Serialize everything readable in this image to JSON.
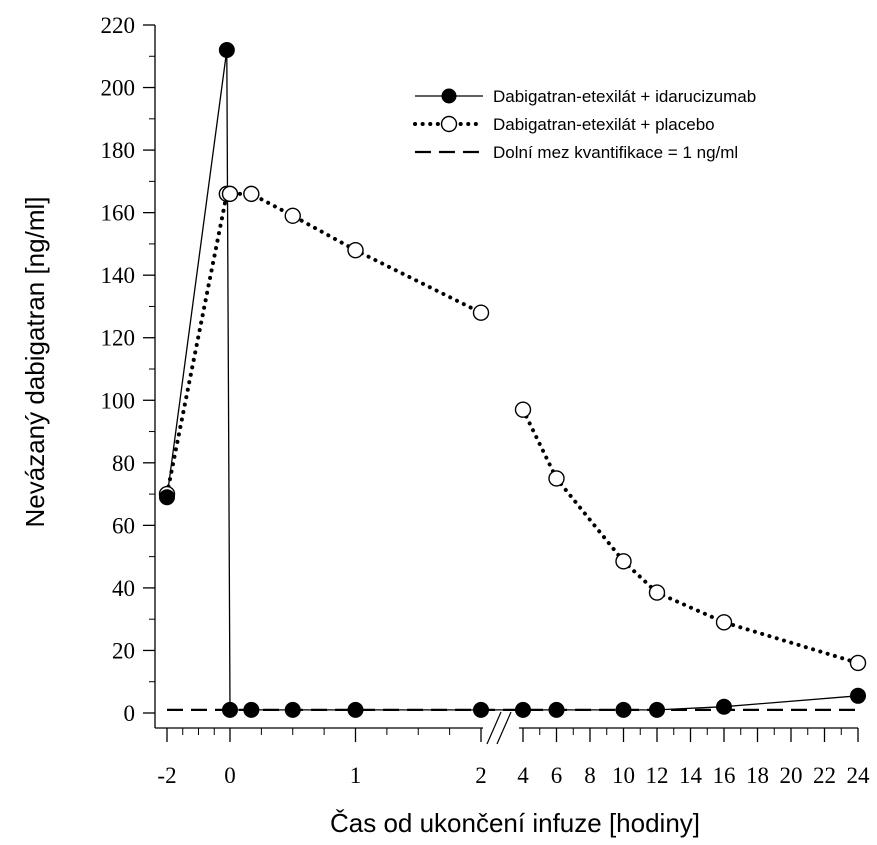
{
  "chart_data": {
    "type": "line",
    "xlabel": "Čas od ukončení infuze [hodiny]",
    "ylabel": "Nevázaný dabigatran [ng/ml]",
    "ylim": [
      0,
      220
    ],
    "y_ticks": [
      0,
      20,
      40,
      60,
      80,
      100,
      120,
      140,
      160,
      180,
      200,
      220
    ],
    "x_axis_note": "broken axis: segment -2 to 2 h, then 4 to 24 h",
    "x_tick_labels": [
      "-2",
      "0",
      "1",
      "2",
      "4",
      "6",
      "8",
      "10",
      "12",
      "14",
      "16",
      "18",
      "20",
      "22",
      "24"
    ],
    "legend_position": "top-right",
    "series": [
      {
        "name": "Dabigatran-etexilát + idarucizumab",
        "style": "solid-line-filled-circle",
        "color": "#000000",
        "points": [
          {
            "x": -2,
            "y": 69
          },
          {
            "x": -0.1,
            "y": 212
          },
          {
            "x": 0,
            "y": 1
          },
          {
            "x": 0.17,
            "y": 1
          },
          {
            "x": 0.5,
            "y": 1
          },
          {
            "x": 1,
            "y": 1
          },
          {
            "x": 2,
            "y": 1
          },
          {
            "x": 4,
            "y": 1
          },
          {
            "x": 6,
            "y": 1
          },
          {
            "x": 10,
            "y": 1
          },
          {
            "x": 12,
            "y": 1
          },
          {
            "x": 16,
            "y": 2
          },
          {
            "x": 24,
            "y": 5.5
          }
        ]
      },
      {
        "name": "Dabigatran-etexilát + placebo",
        "style": "dotted-line-open-circle",
        "color": "#000000",
        "points": [
          {
            "x": -2,
            "y": 70
          },
          {
            "x": -0.1,
            "y": 166
          },
          {
            "x": 0,
            "y": 166
          },
          {
            "x": 0.17,
            "y": 166
          },
          {
            "x": 0.5,
            "y": 159
          },
          {
            "x": 1,
            "y": 148
          },
          {
            "x": 2,
            "y": 128
          },
          {
            "x": 4,
            "y": 97
          },
          {
            "x": 6,
            "y": 75
          },
          {
            "x": 10,
            "y": 48.5
          },
          {
            "x": 12,
            "y": 38.5
          },
          {
            "x": 16,
            "y": 29
          },
          {
            "x": 24,
            "y": 16
          }
        ]
      },
      {
        "name": "Dolní mez kvantifikace = 1 ng/ml",
        "style": "dashed-line",
        "color": "#000000",
        "points": [
          {
            "x": -2,
            "y": 1
          },
          {
            "x": 24,
            "y": 1
          }
        ]
      }
    ]
  }
}
